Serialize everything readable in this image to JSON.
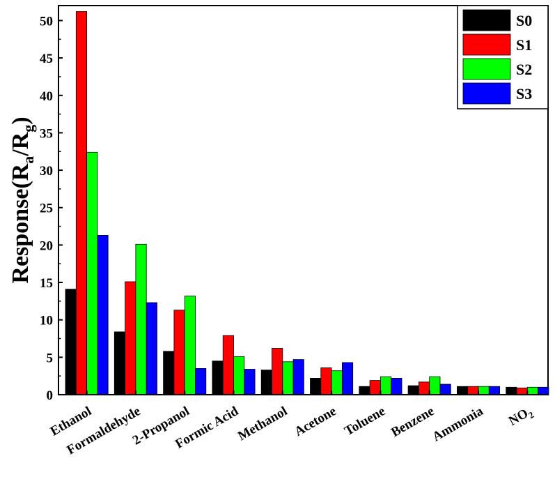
{
  "chart_data": {
    "type": "bar",
    "title": "",
    "xlabel": "",
    "ylabel": "Response(Ra/Rg)",
    "ylabel_parts": {
      "base": "Response(R",
      "sub1": "a",
      "mid": "/R",
      "sub2": "g",
      "end": ")"
    },
    "ylim": [
      0,
      52
    ],
    "yticks": [
      0,
      5,
      10,
      15,
      20,
      25,
      30,
      35,
      40,
      45,
      50
    ],
    "categories": [
      "Ethanol",
      "Formaldehyde",
      "2-Propanol",
      "Formic Acid",
      "Methanol",
      "Acetone",
      "Toluene",
      "Benzene",
      "Ammonia",
      "NO2"
    ],
    "category_labels": [
      {
        "text": "Ethanol",
        "sub": ""
      },
      {
        "text": "Formaldehyde",
        "sub": ""
      },
      {
        "text": "2-Propanol",
        "sub": ""
      },
      {
        "text": "Formic Acid",
        "sub": ""
      },
      {
        "text": "Methanol",
        "sub": ""
      },
      {
        "text": "Acetone",
        "sub": ""
      },
      {
        "text": "Toluene",
        "sub": ""
      },
      {
        "text": "Benzene",
        "sub": ""
      },
      {
        "text": "Ammonia",
        "sub": ""
      },
      {
        "text": "NO",
        "sub": "2"
      }
    ],
    "series": [
      {
        "name": "S0",
        "color": "#000000",
        "values": [
          14.1,
          8.4,
          5.8,
          4.5,
          3.3,
          2.2,
          1.1,
          1.2,
          1.1,
          1.0
        ]
      },
      {
        "name": "S1",
        "color": "#ff0000",
        "values": [
          51.2,
          15.1,
          11.3,
          7.9,
          6.2,
          3.6,
          1.9,
          1.7,
          1.1,
          0.9
        ]
      },
      {
        "name": "S2",
        "color": "#00ff00",
        "values": [
          32.4,
          20.1,
          13.2,
          5.1,
          4.4,
          3.2,
          2.4,
          2.4,
          1.1,
          1.0
        ]
      },
      {
        "name": "S3",
        "color": "#0000ff",
        "values": [
          21.3,
          12.3,
          3.5,
          3.4,
          4.7,
          4.3,
          2.2,
          1.4,
          1.1,
          1.0
        ]
      }
    ],
    "legend_position": "top-right",
    "grid": false
  }
}
